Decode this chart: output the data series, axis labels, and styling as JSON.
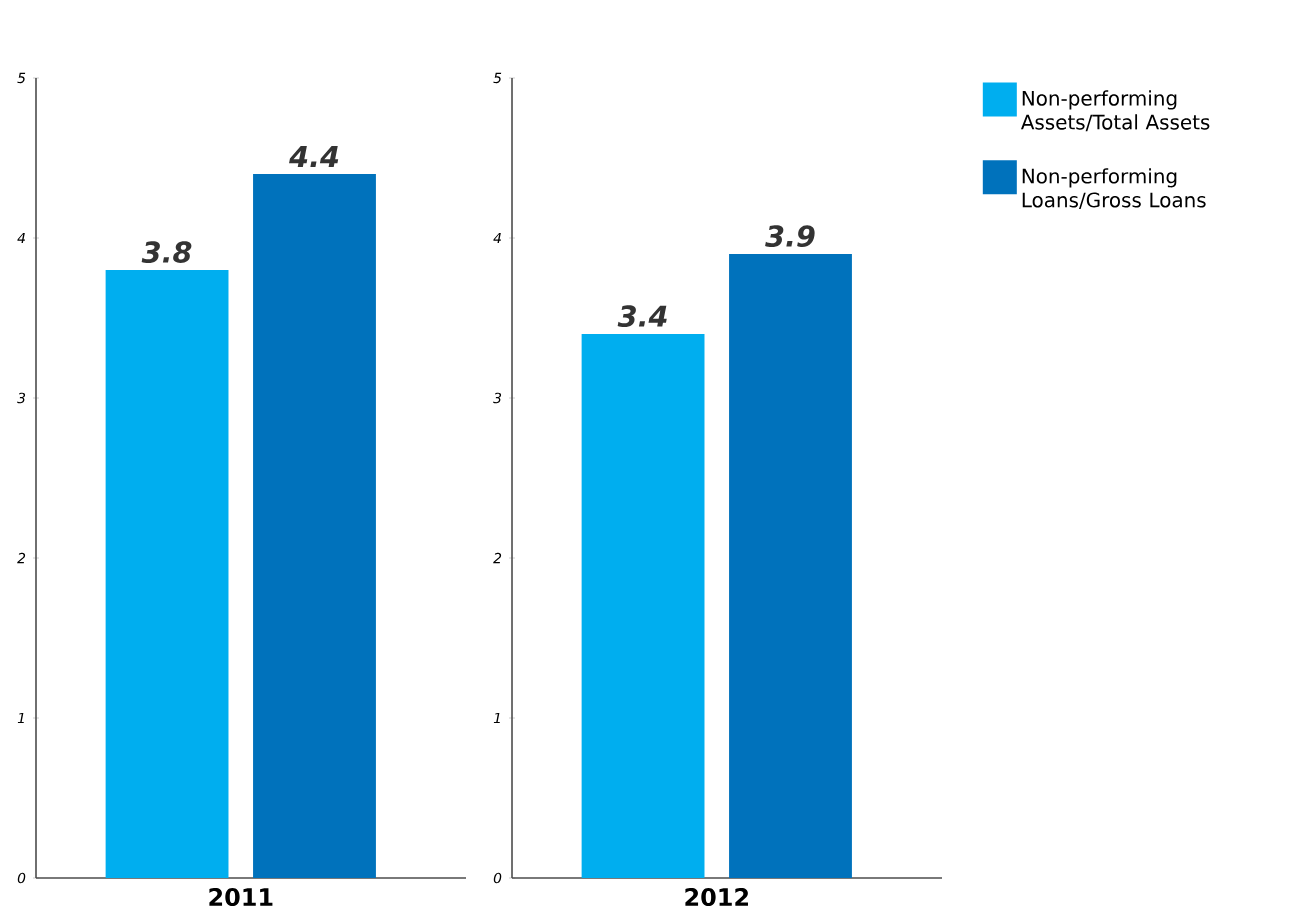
{
  "chart_data": [
    {
      "type": "bar",
      "categories": [
        "2011"
      ],
      "series": [
        {
          "color": "#00aeef",
          "values": [
            3.8
          ]
        },
        {
          "color": "#0072bc",
          "values": [
            4.4
          ]
        }
      ],
      "ylim": [
        0,
        5
      ],
      "yticks": [
        0,
        1,
        2,
        3,
        4,
        5
      ],
      "data_labels": true,
      "grid": false
    },
    {
      "type": "bar",
      "categories": [
        "2012"
      ],
      "series": [
        {
          "name": "Non-performing Assets/Total Assets",
          "color": "#00aeef",
          "values": [
            3.4
          ]
        },
        {
          "name": "Non-performing Loans/Gross Loans",
          "color": "#0072bc",
          "values": [
            3.9
          ]
        }
      ],
      "ylim": [
        0,
        5
      ],
      "yticks": [
        0,
        1,
        2,
        3,
        4,
        5
      ],
      "data_labels": true,
      "legend": "right",
      "grid": false
    }
  ]
}
